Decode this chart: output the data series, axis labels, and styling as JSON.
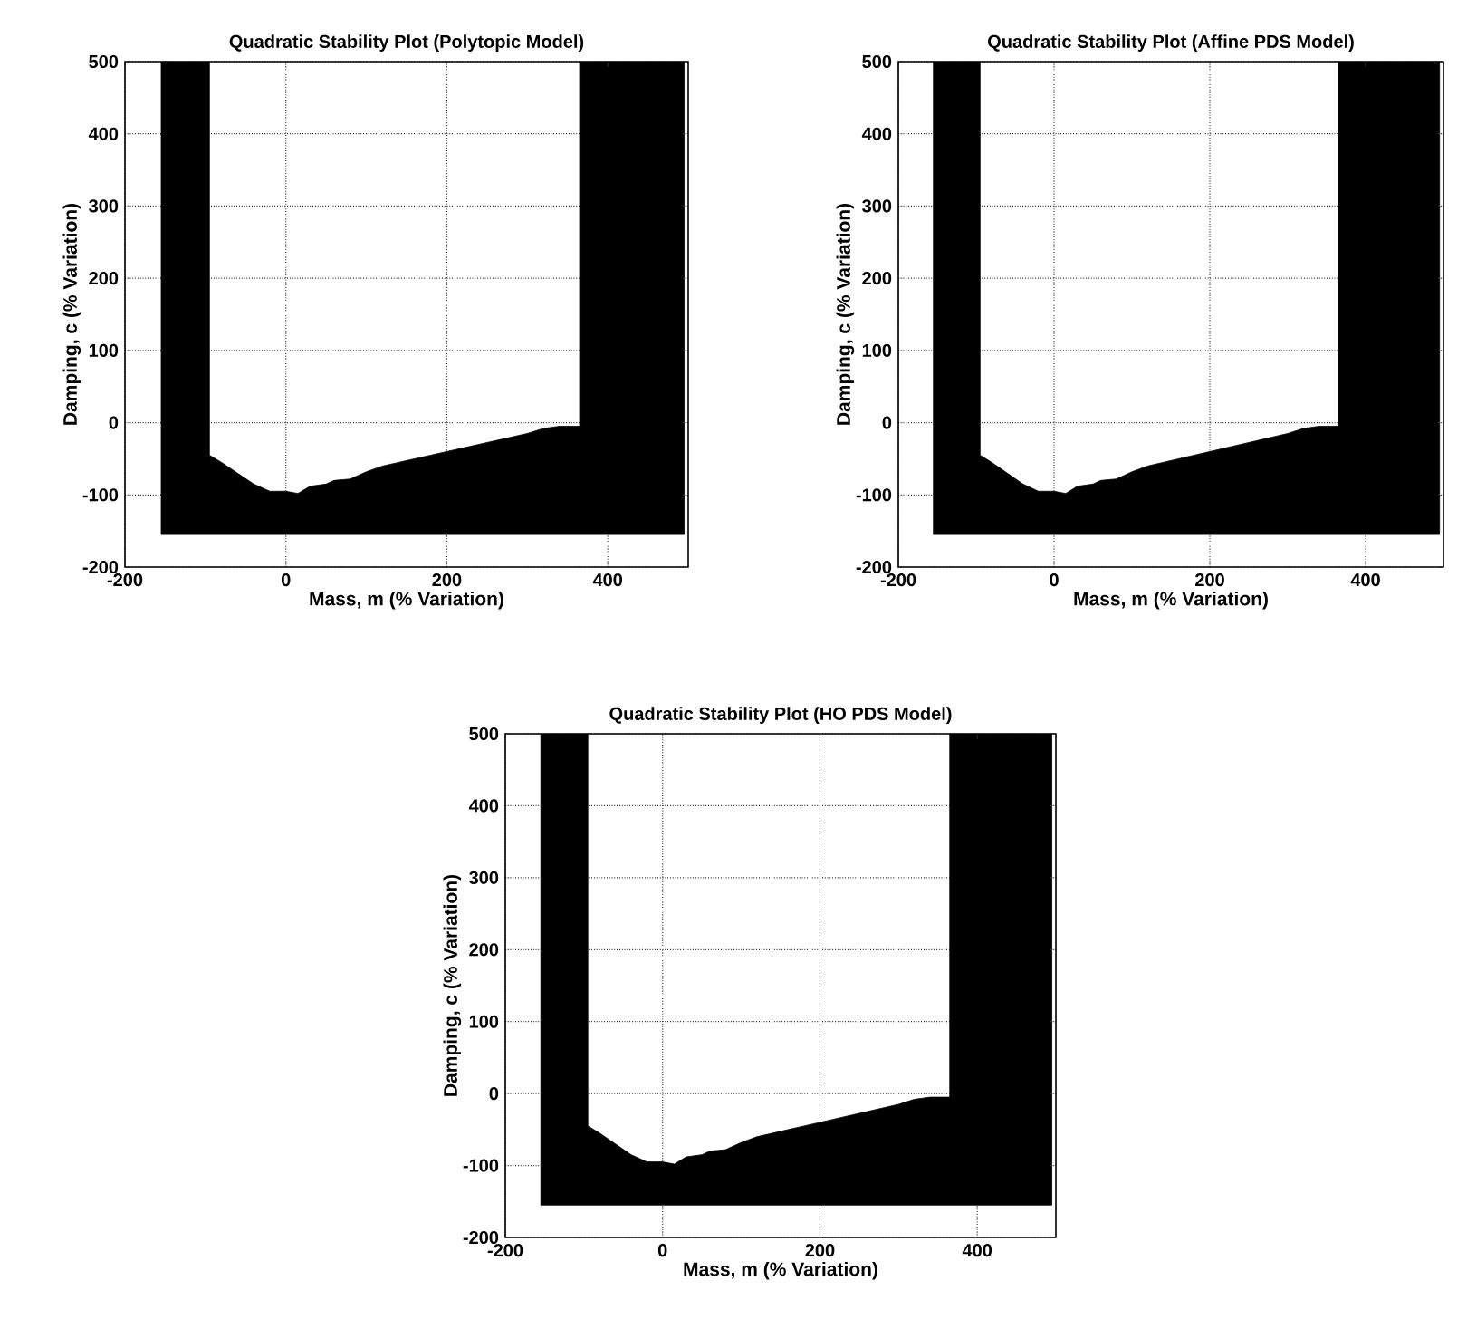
{
  "chart_data": [
    {
      "type": "area",
      "title": "Quadratic Stability Plot (Polytopic Model)",
      "xlabel": "Mass, m (% Variation)",
      "ylabel": "Damping, c (% Variation)",
      "xlim": [
        -200,
        500
      ],
      "ylim": [
        -200,
        500
      ],
      "xticks": [
        -200,
        0,
        200,
        400
      ],
      "yticks": [
        -200,
        -100,
        0,
        100,
        200,
        300,
        400,
        500
      ],
      "grid": true,
      "series": [
        {
          "color": "#000000",
          "x": [
            -155,
            -155,
            -95,
            -95,
            -80,
            -60,
            -40,
            -20,
            0,
            15,
            30,
            50,
            60,
            80,
            100,
            120,
            140,
            160,
            180,
            200,
            220,
            240,
            260,
            280,
            300,
            320,
            340,
            365,
            365,
            495,
            495
          ],
          "values": [
            -155,
            500,
            500,
            -45,
            -55,
            -70,
            -85,
            -95,
            -95,
            -98,
            -88,
            -85,
            -80,
            -78,
            -68,
            -60,
            -55,
            -50,
            -45,
            -40,
            -35,
            -30,
            -25,
            -20,
            -15,
            -8,
            -5,
            -5,
            500,
            500,
            -155
          ]
        }
      ]
    },
    {
      "type": "area",
      "title": "Quadratic Stability Plot (Affine PDS Model)",
      "xlabel": "Mass, m (% Variation)",
      "ylabel": "Damping, c (% Variation)",
      "xlim": [
        -200,
        500
      ],
      "ylim": [
        -200,
        500
      ],
      "xticks": [
        -200,
        0,
        200,
        400
      ],
      "yticks": [
        -200,
        -100,
        0,
        100,
        200,
        300,
        400,
        500
      ],
      "grid": true,
      "series": [
        {
          "color": "#000000",
          "x": [
            -155,
            -155,
            -95,
            -95,
            -80,
            -60,
            -40,
            -20,
            0,
            15,
            30,
            50,
            60,
            80,
            100,
            120,
            140,
            160,
            180,
            200,
            220,
            240,
            260,
            280,
            300,
            320,
            340,
            365,
            365,
            495,
            495
          ],
          "values": [
            -155,
            500,
            500,
            -45,
            -55,
            -70,
            -85,
            -95,
            -95,
            -98,
            -88,
            -85,
            -80,
            -78,
            -68,
            -60,
            -55,
            -50,
            -45,
            -40,
            -35,
            -30,
            -25,
            -20,
            -15,
            -8,
            -5,
            -5,
            500,
            500,
            -155
          ]
        }
      ]
    },
    {
      "type": "area",
      "title": "Quadratic Stability Plot (HO PDS Model)",
      "xlabel": "Mass, m (% Variation)",
      "ylabel": "Damping, c (% Variation)",
      "xlim": [
        -200,
        500
      ],
      "ylim": [
        -200,
        500
      ],
      "xticks": [
        -200,
        0,
        200,
        400
      ],
      "yticks": [
        -200,
        -100,
        0,
        100,
        200,
        300,
        400,
        500
      ],
      "grid": true,
      "series": [
        {
          "color": "#000000",
          "x": [
            -155,
            -155,
            -95,
            -95,
            -80,
            -60,
            -40,
            -20,
            0,
            15,
            30,
            50,
            60,
            80,
            100,
            120,
            140,
            160,
            180,
            200,
            220,
            240,
            260,
            280,
            300,
            320,
            340,
            365,
            365,
            495,
            495
          ],
          "values": [
            -155,
            500,
            500,
            -45,
            -55,
            -70,
            -85,
            -95,
            -95,
            -98,
            -88,
            -85,
            -80,
            -78,
            -68,
            -60,
            -55,
            -50,
            -45,
            -40,
            -35,
            -30,
            -25,
            -20,
            -15,
            -8,
            -5,
            -5,
            500,
            500,
            -155
          ]
        }
      ]
    }
  ]
}
